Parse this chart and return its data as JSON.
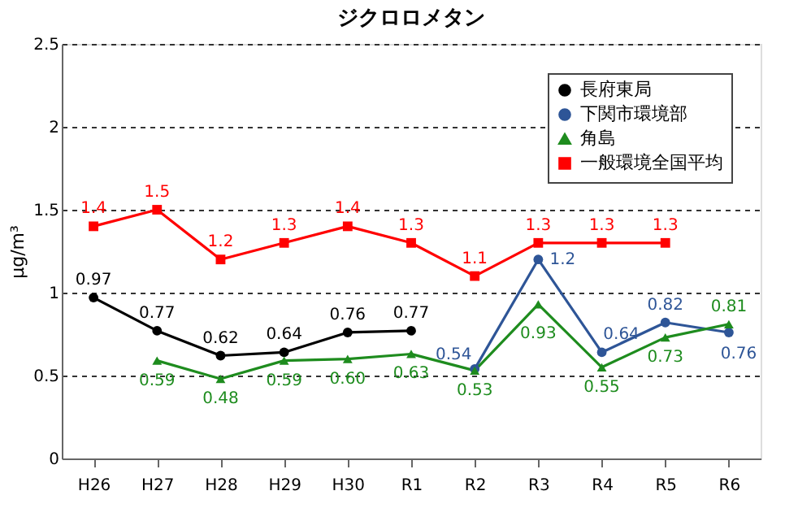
{
  "chart_data": {
    "type": "line",
    "title": "ジクロロメタン",
    "ylabel": "μg/m³",
    "categories": [
      "H26",
      "H27",
      "H28",
      "H29",
      "H30",
      "R1",
      "R2",
      "R3",
      "R4",
      "R5",
      "R6"
    ],
    "ylim": [
      0,
      2.5
    ],
    "yticks": [
      0,
      0.5,
      1,
      1.5,
      2,
      2.5
    ],
    "grid": "y",
    "legend": "top right",
    "line_style": "solid",
    "series": [
      {
        "name": "長府東局",
        "color": "#000000",
        "marker": "circle",
        "values": [
          0.97,
          0.77,
          0.62,
          0.64,
          0.76,
          0.77,
          null,
          null,
          null,
          null,
          null
        ],
        "value_labels": [
          "0.97",
          "0.77",
          "0.62",
          "0.64",
          "0.76",
          "0.77",
          null,
          null,
          null,
          null,
          null
        ]
      },
      {
        "name": "下関市環境部",
        "color": "#2e5597",
        "marker": "circle",
        "values": [
          null,
          null,
          null,
          null,
          null,
          null,
          0.54,
          1.2,
          0.64,
          0.82,
          0.76
        ],
        "value_labels": [
          null,
          null,
          null,
          null,
          null,
          null,
          "0.54",
          "1.2",
          "0.64",
          "0.82",
          "0.76"
        ]
      },
      {
        "name": "角島",
        "color": "#1e8c1e",
        "marker": "triangle",
        "values": [
          null,
          0.59,
          0.48,
          0.59,
          0.6,
          0.63,
          0.53,
          0.93,
          0.55,
          0.73,
          0.81
        ],
        "value_labels": [
          null,
          "0.59",
          "0.48",
          "0.59",
          "0.60",
          "0.63",
          "0.53",
          "0.93",
          "0.55",
          "0.73",
          "0.81"
        ]
      },
      {
        "name": "一般環境全国平均",
        "color": "#ff0000",
        "marker": "square",
        "values": [
          1.4,
          1.5,
          1.2,
          1.3,
          1.4,
          1.3,
          1.1,
          1.3,
          1.3,
          1.3,
          null
        ],
        "value_labels": [
          "1.4",
          "1.5",
          "1.2",
          "1.3",
          "1.4",
          "1.3",
          "1.1",
          "1.3",
          "1.3",
          "1.3",
          null
        ]
      }
    ]
  }
}
